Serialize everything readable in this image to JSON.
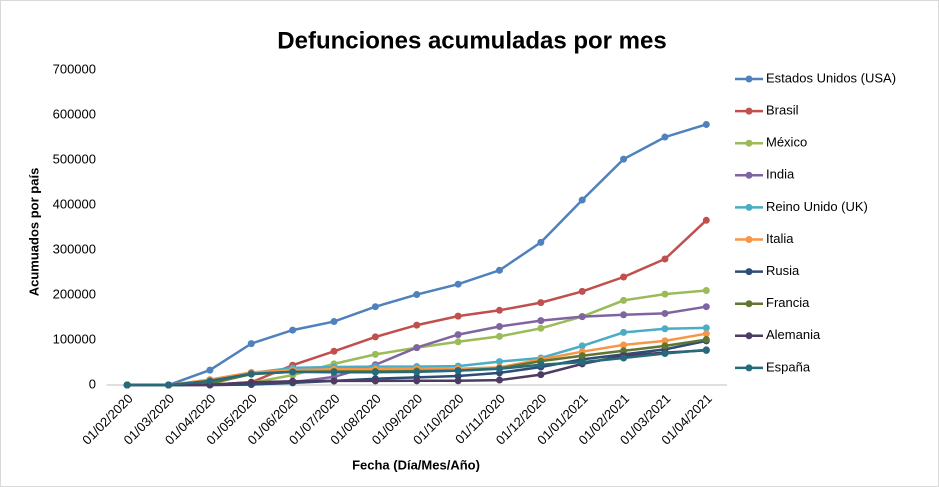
{
  "chart_data": {
    "type": "line",
    "title": "Defunciones acumuladas por mes",
    "x_label": "Fecha (Día/Mes/Año)",
    "y_label": "Acumuados por país",
    "categories": [
      "01/02/2020",
      "01/03/2020",
      "01/04/2020",
      "01/05/2020",
      "01/06/2020",
      "01/07/2020",
      "01/08/2020",
      "01/09/2020",
      "01/10/2020",
      "01/11/2020",
      "01/12/2020",
      "01/01/2021",
      "01/02/2021",
      "01/03/2021",
      "01/04/2021"
    ],
    "ylim": [
      0,
      700000
    ],
    "yticks": [
      0,
      100000,
      200000,
      300000,
      400000,
      500000,
      600000,
      700000
    ],
    "grid": false,
    "legend": "right",
    "series": [
      {
        "name": "Estados Unidos (USA)",
        "color": "#4f81bd",
        "values": [
          0,
          0,
          33000,
          92000,
          122000,
          141000,
          174000,
          201000,
          224000,
          255000,
          317000,
          411000,
          502000,
          551000,
          579000
        ]
      },
      {
        "name": "Brasil",
        "color": "#c0504d",
        "values": [
          0,
          0,
          200,
          6000,
          44000,
          75000,
          107000,
          133000,
          153000,
          166000,
          183000,
          208000,
          240000,
          280000,
          366000
        ]
      },
      {
        "name": "México",
        "color": "#9bbb59",
        "values": [
          0,
          0,
          1000,
          5000,
          22000,
          47000,
          68000,
          83000,
          96000,
          108000,
          126000,
          152000,
          188000,
          202000,
          210000
        ]
      },
      {
        "name": "India",
        "color": "#8064a2",
        "values": [
          0,
          0,
          0,
          1000,
          6000,
          18000,
          45000,
          83000,
          112000,
          130000,
          143000,
          152000,
          156000,
          159000,
          174000
        ]
      },
      {
        "name": "Reino Unido (UK)",
        "color": "#4bacc6",
        "values": [
          0,
          0,
          2000,
          27000,
          38000,
          40000,
          41000,
          41000,
          42000,
          52000,
          60000,
          87000,
          117000,
          125000,
          127000
        ]
      },
      {
        "name": "Italia",
        "color": "#f79646",
        "values": [
          0,
          0,
          12000,
          28000,
          33000,
          35000,
          35000,
          35500,
          36000,
          39000,
          57000,
          74000,
          89000,
          98000,
          114000
        ]
      },
      {
        "name": "Rusia",
        "color": "#2c4d75",
        "values": [
          0,
          0,
          0,
          1100,
          4600,
          9000,
          14000,
          17000,
          20000,
          27000,
          40000,
          57000,
          68000,
          79000,
          98000
        ]
      },
      {
        "name": "Francia",
        "color": "#5f7530",
        "values": [
          0,
          0,
          3500,
          24000,
          29000,
          30000,
          30000,
          31000,
          32000,
          37000,
          53000,
          65000,
          76000,
          87000,
          101000
        ]
      },
      {
        "name": "Alemania",
        "color": "#4d3b62",
        "values": [
          0,
          0,
          600,
          6000,
          8500,
          9000,
          9200,
          9300,
          9500,
          11000,
          23000,
          47000,
          65000,
          72000,
          77000
        ]
      },
      {
        "name": "España",
        "color": "#276a7c",
        "values": [
          0,
          0,
          9000,
          25000,
          29000,
          28400,
          28500,
          29000,
          32000,
          36000,
          45000,
          51000,
          60000,
          70000,
          78000
        ]
      }
    ]
  }
}
